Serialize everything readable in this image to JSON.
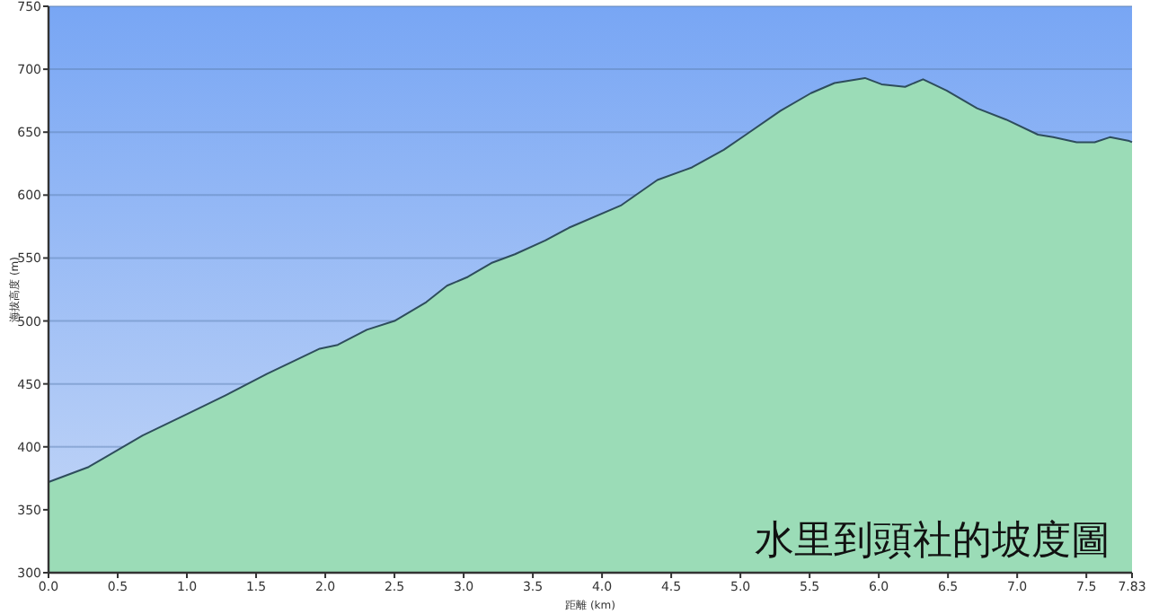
{
  "chart_data": {
    "type": "area",
    "title": "水里到頭社的坡度圖",
    "xlabel": "距離 (km)",
    "ylabel": "海拔高度 (m)",
    "x": [
      0,
      0.29,
      0.68,
      1.02,
      1.28,
      1.58,
      1.75,
      1.96,
      2.09,
      2.3,
      2.5,
      2.73,
      2.88,
      3.03,
      3.2,
      3.37,
      3.59,
      3.76,
      4.14,
      4.4,
      4.65,
      4.88,
      5.04,
      5.29,
      5.51,
      5.68,
      5.9,
      6.02,
      6.19,
      6.32,
      6.49,
      6.71,
      6.92,
      7.15,
      7.26,
      7.43,
      7.56,
      7.67,
      7.81,
      7.83
    ],
    "series": [
      {
        "color": "#2e4d5c",
        "values": [
          372,
          384,
          409,
          427,
          441,
          458,
          467,
          478,
          481,
          493,
          500,
          515,
          528,
          535,
          546,
          553,
          564,
          574,
          592,
          612,
          622,
          636,
          648,
          667,
          681,
          689,
          693,
          688,
          686,
          692,
          683,
          669,
          660,
          648,
          646,
          642,
          642,
          646,
          643,
          642
        ]
      }
    ],
    "xlim": [
      0,
      7.83
    ],
    "xticks": [
      {
        "value": 0,
        "label": "0.0"
      },
      {
        "value": 0.5,
        "label": "0.5"
      },
      {
        "value": 1,
        "label": "1.0"
      },
      {
        "value": 1.5,
        "label": "1.5"
      },
      {
        "value": 2,
        "label": "2.0"
      },
      {
        "value": 2.5,
        "label": "2.5"
      },
      {
        "value": 3,
        "label": "3.0"
      },
      {
        "value": 3.5,
        "label": "3.5"
      },
      {
        "value": 4,
        "label": "4.0"
      },
      {
        "value": 4.5,
        "label": "4.5"
      },
      {
        "value": 5,
        "label": "5.0"
      },
      {
        "value": 5.5,
        "label": "5.5"
      },
      {
        "value": 6,
        "label": "6.0"
      },
      {
        "value": 6.5,
        "label": "6.5"
      },
      {
        "value": 7,
        "label": "7.0"
      },
      {
        "value": 7.5,
        "label": "7.5"
      },
      7.83
    ],
    "ylim": [
      300,
      750
    ],
    "yticks": [
      300,
      350,
      400,
      450,
      500,
      550,
      600,
      650,
      700,
      750
    ],
    "grid": "y"
  }
}
